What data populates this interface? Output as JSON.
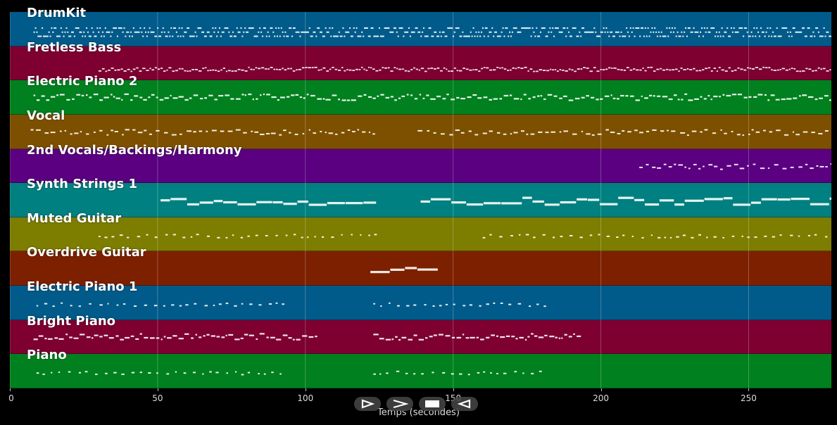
{
  "tracks": [
    {
      "name": "DrumKit",
      "color": "#005a8a",
      "pattern": "drums",
      "segments": [
        [
          8,
          280
        ]
      ],
      "density": 2.2
    },
    {
      "name": "Fretless Bass",
      "color": "#7d0030",
      "pattern": "dense",
      "segments": [
        [
          30,
          280
        ]
      ],
      "density": 1.4
    },
    {
      "name": "Electric Piano 2",
      "color": "#00801e",
      "pattern": "chords",
      "segments": [
        [
          8,
          280
        ]
      ],
      "density": 1.3
    },
    {
      "name": "Vocal",
      "color": "#7d5000",
      "pattern": "melody",
      "segments": [
        [
          7,
          123
        ],
        [
          138,
          280
        ]
      ],
      "density": 1.0
    },
    {
      "name": "2nd Vocals/Backings/Harmony",
      "color": "#5a0080",
      "pattern": "melody",
      "segments": [
        [
          213,
          280
        ]
      ],
      "density": 1.1
    },
    {
      "name": "Synth Strings 1",
      "color": "#008080",
      "pattern": "sustain",
      "segments": [
        [
          51,
          123
        ],
        [
          139,
          280
        ]
      ],
      "density": 0.3
    },
    {
      "name": "Muted Guitar",
      "color": "#7d7d00",
      "pattern": "sparse",
      "segments": [
        [
          30,
          124
        ],
        [
          160,
          280
        ]
      ],
      "density": 0.8
    },
    {
      "name": "Overdrive Guitar",
      "color": "#7d2000",
      "pattern": "sustain",
      "segments": [
        [
          122,
          142
        ]
      ],
      "density": 0.3
    },
    {
      "name": "Electric Piano 1",
      "color": "#005a8a",
      "pattern": "sparse",
      "segments": [
        [
          9,
          93
        ],
        [
          123,
          181
        ]
      ],
      "density": 0.9
    },
    {
      "name": "Bright Piano",
      "color": "#7d0030",
      "pattern": "chords",
      "segments": [
        [
          8,
          104
        ],
        [
          123,
          193
        ]
      ],
      "density": 1.3
    },
    {
      "name": "Piano",
      "color": "#00801e",
      "pattern": "sparse",
      "segments": [
        [
          9,
          93
        ],
        [
          123,
          181
        ]
      ],
      "density": 0.9
    }
  ],
  "x_axis": {
    "label": "Temps (secondes)",
    "min": 0,
    "max": 278,
    "ticks": [
      0,
      50,
      100,
      150,
      200,
      250
    ]
  },
  "controls": [
    {
      "name": "play-button",
      "icon": "play-icon"
    },
    {
      "name": "fast-forward-button",
      "icon": "fast-forward-icon"
    },
    {
      "name": "stop-button",
      "icon": "stop-icon"
    },
    {
      "name": "rewind-button",
      "icon": "rewind-icon"
    }
  ],
  "note_color": "#ffffff"
}
